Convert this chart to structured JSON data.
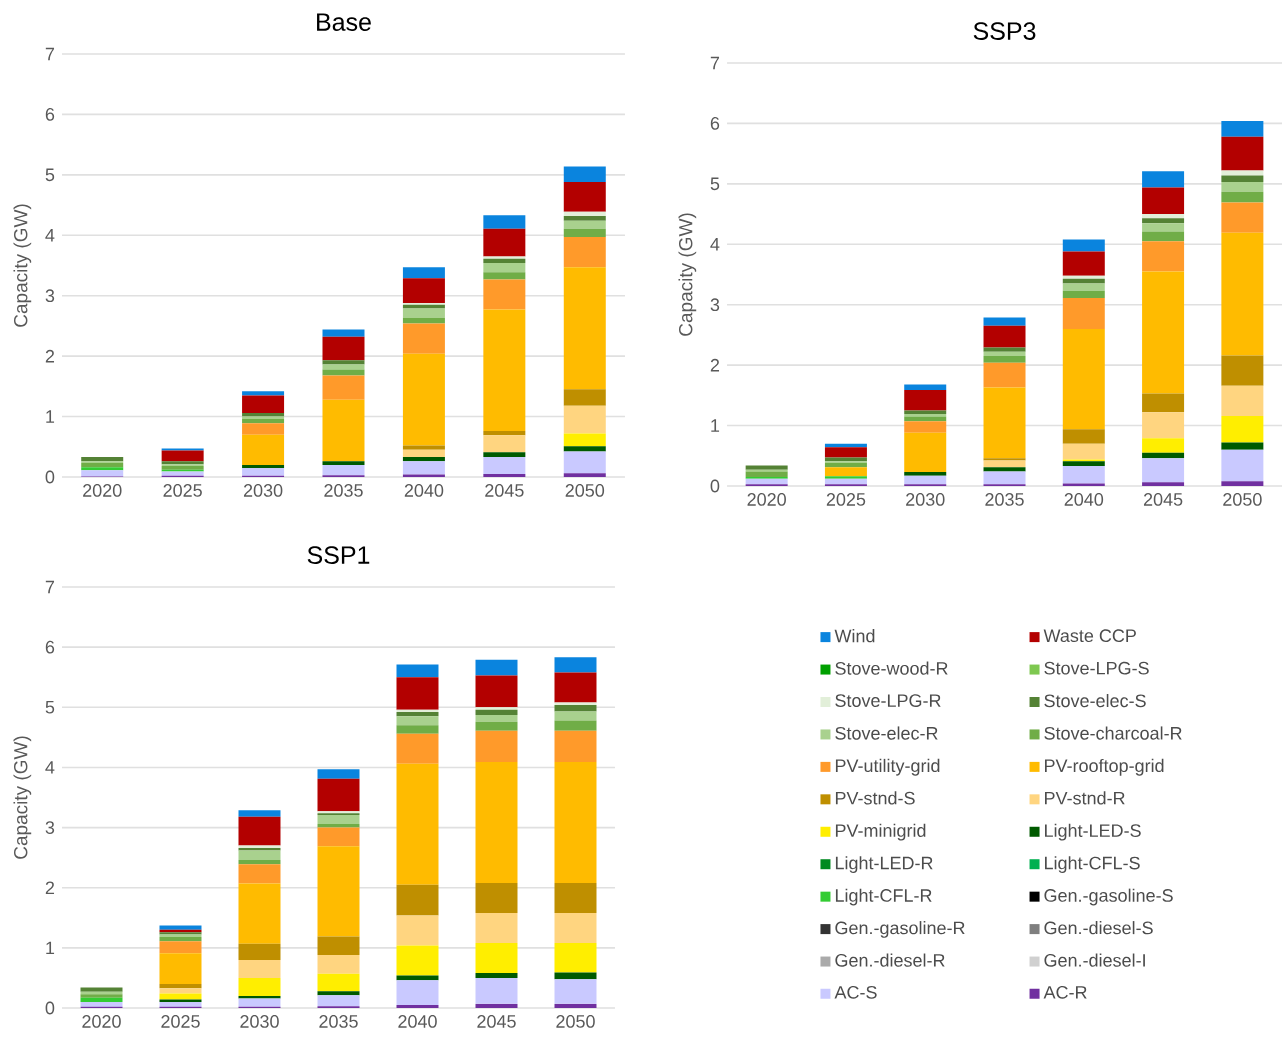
{
  "chart_data": [
    {
      "type": "bar",
      "stacked": true,
      "title": "Base",
      "ylabel": "Capacity (GW)",
      "categories": [
        "2020",
        "2025",
        "2030",
        "2035",
        "2040",
        "2045",
        "2050"
      ],
      "ylim": [
        0,
        7
      ],
      "yticks": [
        0,
        1,
        2,
        3,
        4,
        5,
        6,
        7
      ],
      "grid": "y",
      "series": [
        {
          "color": "#7030a0",
          "values": [
            0.01,
            0.02,
            0.02,
            0.03,
            0.04,
            0.05,
            0.06
          ]
        },
        {
          "color": "#c9c9ff",
          "values": [
            0.1,
            0.07,
            0.13,
            0.17,
            0.22,
            0.28,
            0.36
          ]
        },
        {
          "color": "#d0d0d0",
          "values": [
            0,
            0,
            0,
            0,
            0,
            0,
            0
          ]
        },
        {
          "color": "#aaaaaa",
          "values": [
            0,
            0,
            0,
            0,
            0,
            0,
            0
          ]
        },
        {
          "color": "#7f7f7f",
          "values": [
            0,
            0,
            0,
            0,
            0,
            0,
            0
          ]
        },
        {
          "color": "#333333",
          "values": [
            0,
            0,
            0,
            0,
            0,
            0,
            0
          ]
        },
        {
          "color": "#000000",
          "values": [
            0,
            0,
            0,
            0,
            0,
            0,
            0
          ]
        },
        {
          "color": "#33cc33",
          "values": [
            0.05,
            0.03,
            0,
            0,
            0,
            0,
            0
          ]
        },
        {
          "color": "#00b050",
          "values": [
            0,
            0,
            0,
            0,
            0,
            0,
            0
          ]
        },
        {
          "color": "#008a20",
          "values": [
            0,
            0,
            0,
            0,
            0,
            0,
            0
          ]
        },
        {
          "color": "#005a00",
          "values": [
            0,
            0,
            0.05,
            0.06,
            0.07,
            0.08,
            0.09
          ]
        },
        {
          "color": "#ffee00",
          "values": [
            0,
            0,
            0,
            0,
            0,
            0,
            0.21
          ]
        },
        {
          "color": "#ffd580",
          "values": [
            0,
            0,
            0,
            0,
            0.12,
            0.28,
            0.46
          ]
        },
        {
          "color": "#bf8f00",
          "values": [
            0,
            0,
            0,
            0,
            0.07,
            0.07,
            0.27
          ]
        },
        {
          "color": "#ffbb00",
          "values": [
            0,
            0,
            0.5,
            1.02,
            1.52,
            2.01,
            2.02
          ]
        },
        {
          "color": "#ff9a2a",
          "values": [
            0,
            0,
            0.19,
            0.4,
            0.5,
            0.5,
            0.5
          ]
        },
        {
          "color": "#70ad47",
          "values": [
            0.07,
            0.06,
            0.07,
            0.1,
            0.09,
            0.12,
            0.14
          ]
        },
        {
          "color": "#a9d18e",
          "values": [
            0.03,
            0.03,
            0.04,
            0.08,
            0.16,
            0.15,
            0.13
          ]
        },
        {
          "color": "#548235",
          "values": [
            0.07,
            0.05,
            0.06,
            0.07,
            0.06,
            0.07,
            0.08
          ]
        },
        {
          "color": "#e2efd9",
          "values": [
            0,
            0,
            0,
            0,
            0.03,
            0.04,
            0.07
          ]
        },
        {
          "color": "#7ec850",
          "values": [
            0,
            0,
            0,
            0,
            0,
            0,
            0
          ]
        },
        {
          "color": "#00a000",
          "values": [
            0,
            0,
            0,
            0,
            0,
            0,
            0
          ]
        },
        {
          "color": "#b30000",
          "values": [
            0,
            0.18,
            0.29,
            0.39,
            0.41,
            0.46,
            0.49
          ]
        },
        {
          "color": "#0a84de",
          "values": [
            0,
            0.03,
            0.07,
            0.12,
            0.18,
            0.22,
            0.26
          ]
        }
      ]
    },
    {
      "type": "bar",
      "stacked": true,
      "title": "SSP3",
      "ylabel": "Capacity (GW)",
      "categories": [
        "2020",
        "2025",
        "2030",
        "2035",
        "2040",
        "2045",
        "2050"
      ],
      "ylim": [
        0,
        7
      ],
      "yticks": [
        0,
        1,
        2,
        3,
        4,
        5,
        6,
        7
      ],
      "grid": "y",
      "series": [
        {
          "color": "#7030a0",
          "values": [
            0.03,
            0.03,
            0.03,
            0.03,
            0.04,
            0.06,
            0.08
          ]
        },
        {
          "color": "#c9c9ff",
          "values": [
            0.09,
            0.09,
            0.14,
            0.21,
            0.29,
            0.4,
            0.52
          ]
        },
        {
          "color": "#d0d0d0",
          "values": [
            0,
            0,
            0,
            0,
            0,
            0,
            0
          ]
        },
        {
          "color": "#aaaaaa",
          "values": [
            0,
            0,
            0,
            0,
            0,
            0,
            0
          ]
        },
        {
          "color": "#7f7f7f",
          "values": [
            0,
            0,
            0,
            0,
            0,
            0,
            0
          ]
        },
        {
          "color": "#333333",
          "values": [
            0,
            0,
            0,
            0,
            0,
            0,
            0
          ]
        },
        {
          "color": "#000000",
          "values": [
            0,
            0,
            0,
            0,
            0,
            0,
            0
          ]
        },
        {
          "color": "#33cc33",
          "values": [
            0.03,
            0.04,
            0,
            0,
            0,
            0,
            0
          ]
        },
        {
          "color": "#00b050",
          "values": [
            0,
            0,
            0,
            0,
            0,
            0,
            0
          ]
        },
        {
          "color": "#008a20",
          "values": [
            0,
            0,
            0,
            0,
            0,
            0,
            0
          ]
        },
        {
          "color": "#005a00",
          "values": [
            0,
            0,
            0.06,
            0.07,
            0.08,
            0.09,
            0.12
          ]
        },
        {
          "color": "#ffee00",
          "values": [
            0,
            0,
            0,
            0,
            0.03,
            0.24,
            0.44
          ]
        },
        {
          "color": "#ffd580",
          "values": [
            0,
            0,
            0,
            0.11,
            0.26,
            0.43,
            0.5
          ]
        },
        {
          "color": "#bf8f00",
          "values": [
            0,
            0,
            0,
            0.04,
            0.24,
            0.31,
            0.5
          ]
        },
        {
          "color": "#ffbb00",
          "values": [
            0,
            0.15,
            0.65,
            1.17,
            1.66,
            2.02,
            2.03
          ]
        },
        {
          "color": "#ff9a2a",
          "values": [
            0,
            0,
            0.19,
            0.41,
            0.51,
            0.5,
            0.5
          ]
        },
        {
          "color": "#70ad47",
          "values": [
            0.09,
            0.07,
            0.08,
            0.11,
            0.12,
            0.16,
            0.18
          ]
        },
        {
          "color": "#a9d18e",
          "values": [
            0.03,
            0.03,
            0.04,
            0.07,
            0.12,
            0.14,
            0.16
          ]
        },
        {
          "color": "#548235",
          "values": [
            0.07,
            0.06,
            0.06,
            0.07,
            0.08,
            0.08,
            0.11
          ]
        },
        {
          "color": "#e2efd9",
          "values": [
            0,
            0,
            0,
            0,
            0.05,
            0.07,
            0.08
          ]
        },
        {
          "color": "#7ec850",
          "values": [
            0,
            0,
            0,
            0,
            0,
            0,
            0
          ]
        },
        {
          "color": "#00a000",
          "values": [
            0,
            0,
            0,
            0,
            0,
            0,
            0
          ]
        },
        {
          "color": "#b30000",
          "values": [
            0,
            0.17,
            0.34,
            0.36,
            0.4,
            0.44,
            0.56
          ]
        },
        {
          "color": "#0a84de",
          "values": [
            0,
            0.06,
            0.09,
            0.14,
            0.2,
            0.27,
            0.26
          ]
        }
      ]
    },
    {
      "type": "bar",
      "stacked": true,
      "title": "SSP1",
      "ylabel": "Capacity (GW)",
      "categories": [
        "2020",
        "2025",
        "2030",
        "2035",
        "2040",
        "2045",
        "2050"
      ],
      "ylim": [
        0,
        7
      ],
      "yticks": [
        0,
        1,
        2,
        3,
        4,
        5,
        6,
        7
      ],
      "grid": "y",
      "legend": "right",
      "series": [
        {
          "name": "AC-R",
          "color": "#7030a0",
          "values": [
            0.02,
            0.02,
            0.02,
            0.03,
            0.05,
            0.07,
            0.07
          ]
        },
        {
          "name": "AC-S",
          "color": "#c9c9ff",
          "values": [
            0.08,
            0.08,
            0.14,
            0.18,
            0.41,
            0.43,
            0.41
          ]
        },
        {
          "name": "Gen.-diesel-I",
          "color": "#d0d0d0",
          "values": [
            0,
            0,
            0,
            0,
            0,
            0,
            0
          ]
        },
        {
          "name": "Gen.-diesel-R",
          "color": "#aaaaaa",
          "values": [
            0,
            0,
            0,
            0,
            0,
            0,
            0
          ]
        },
        {
          "name": "Gen.-diesel-S",
          "color": "#7f7f7f",
          "values": [
            0,
            0,
            0,
            0,
            0,
            0,
            0
          ]
        },
        {
          "name": "Gen.-gasoline-R",
          "color": "#333333",
          "values": [
            0,
            0,
            0,
            0,
            0,
            0,
            0
          ]
        },
        {
          "name": "Gen.-gasoline-S",
          "color": "#000000",
          "values": [
            0,
            0,
            0,
            0,
            0,
            0,
            0
          ]
        },
        {
          "name": "Light-CFL-R",
          "color": "#33cc33",
          "values": [
            0.07,
            0,
            0,
            0,
            0,
            0,
            0
          ]
        },
        {
          "name": "Light-CFL-S",
          "color": "#00b050",
          "values": [
            0,
            0,
            0,
            0,
            0,
            0,
            0
          ]
        },
        {
          "name": "Light-LED-R",
          "color": "#008a20",
          "values": [
            0,
            0,
            0,
            0,
            0,
            0,
            0
          ]
        },
        {
          "name": "Light-LED-S",
          "color": "#005a00",
          "values": [
            0,
            0.04,
            0.04,
            0.07,
            0.08,
            0.08,
            0.11
          ]
        },
        {
          "name": "PV-minigrid",
          "color": "#ffee00",
          "values": [
            0,
            0.1,
            0.3,
            0.29,
            0.5,
            0.5,
            0.49
          ]
        },
        {
          "name": "PV-stnd-R",
          "color": "#ffd580",
          "values": [
            0,
            0.09,
            0.3,
            0.31,
            0.5,
            0.5,
            0.5
          ]
        },
        {
          "name": "PV-stnd-S",
          "color": "#bf8f00",
          "values": [
            0,
            0.07,
            0.27,
            0.31,
            0.51,
            0.5,
            0.5
          ]
        },
        {
          "name": "PV-rooftop-grid",
          "color": "#ffbb00",
          "values": [
            0,
            0.51,
            1.0,
            1.5,
            2.01,
            2.01,
            2.01
          ]
        },
        {
          "name": "PV-utility-grid",
          "color": "#ff9a2a",
          "values": [
            0,
            0.2,
            0.32,
            0.31,
            0.5,
            0.52,
            0.52
          ]
        },
        {
          "name": "Stove-charcoal-R",
          "color": "#70ad47",
          "values": [
            0.06,
            0.07,
            0.07,
            0.06,
            0.14,
            0.15,
            0.17
          ]
        },
        {
          "name": "Stove-elec-R",
          "color": "#a9d18e",
          "values": [
            0.04,
            0.04,
            0.16,
            0.15,
            0.15,
            0.11,
            0.15
          ]
        },
        {
          "name": "Stove-elec-S",
          "color": "#548235",
          "values": [
            0.07,
            0.04,
            0.04,
            0.03,
            0.07,
            0.09,
            0.11
          ]
        },
        {
          "name": "Stove-LPG-R",
          "color": "#e2efd9",
          "values": [
            0,
            0,
            0.04,
            0.03,
            0.04,
            0.04,
            0.04
          ]
        },
        {
          "name": "Stove-LPG-S",
          "color": "#7ec850",
          "values": [
            0,
            0,
            0,
            0,
            0,
            0,
            0
          ]
        },
        {
          "name": "Stove-wood-R",
          "color": "#00a000",
          "values": [
            0,
            0,
            0,
            0,
            0,
            0,
            0
          ]
        },
        {
          "name": "Waste CCP",
          "color": "#b30000",
          "values": [
            0,
            0.04,
            0.48,
            0.54,
            0.54,
            0.53,
            0.5
          ]
        },
        {
          "name": "Wind",
          "color": "#0a84de",
          "values": [
            0,
            0.07,
            0.11,
            0.16,
            0.21,
            0.26,
            0.25
          ]
        }
      ]
    }
  ]
}
